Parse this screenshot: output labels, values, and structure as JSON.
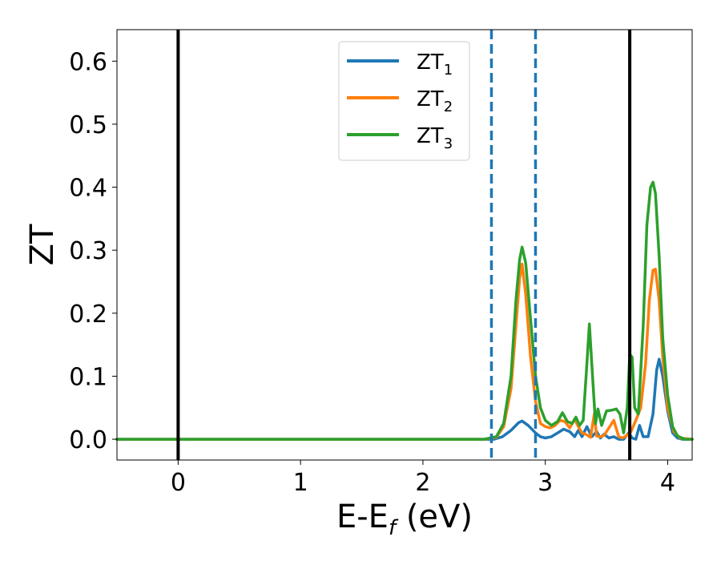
{
  "chart_data": {
    "type": "line",
    "xlabel": {
      "main": "E-E",
      "sub": "f",
      "unit": " (eV)"
    },
    "ylabel": "ZT",
    "xlim": [
      -0.5,
      4.2
    ],
    "ylim": [
      -0.033,
      0.65
    ],
    "xticks": [
      0,
      1,
      2,
      3,
      4
    ],
    "yticks": [
      0.0,
      0.1,
      0.2,
      0.3,
      0.4,
      0.5,
      0.6
    ],
    "xtick_labels": [
      "0",
      "1",
      "2",
      "3",
      "4"
    ],
    "ytick_labels": [
      "0.0",
      "0.1",
      "0.2",
      "0.3",
      "0.4",
      "0.5",
      "0.6"
    ],
    "grid": false,
    "legend_position": "top-center",
    "vlines": [
      {
        "x": 0.0,
        "style": "solid",
        "color": "#000000"
      },
      {
        "x": 2.56,
        "style": "dashed",
        "color": "#1f77b4"
      },
      {
        "x": 2.92,
        "style": "dashed",
        "color": "#1f77b4"
      },
      {
        "x": 3.69,
        "style": "solid",
        "color": "#000000"
      }
    ],
    "series": [
      {
        "name": "ZT",
        "sub": "1",
        "color": "#1f77b4",
        "x": [
          -0.5,
          2.5,
          2.58,
          2.65,
          2.72,
          2.78,
          2.81,
          2.86,
          2.92,
          2.96,
          3.0,
          3.05,
          3.1,
          3.15,
          3.2,
          3.24,
          3.27,
          3.3,
          3.34,
          3.38,
          3.42,
          3.45,
          3.48,
          3.52,
          3.56,
          3.6,
          3.64,
          3.68,
          3.71,
          3.74,
          3.77,
          3.8,
          3.84,
          3.88,
          3.91,
          3.93,
          3.96,
          4.0,
          4.04,
          4.08,
          4.12,
          4.2
        ],
        "y": [
          0.0,
          0.0,
          0.0,
          0.004,
          0.014,
          0.026,
          0.029,
          0.022,
          0.01,
          0.004,
          0.002,
          0.004,
          0.01,
          0.016,
          0.012,
          0.004,
          0.014,
          0.004,
          0.02,
          0.004,
          0.012,
          0.002,
          0.008,
          0.002,
          0.004,
          0.0,
          0.0,
          0.01,
          0.002,
          0.0,
          0.022,
          0.004,
          0.004,
          0.04,
          0.11,
          0.127,
          0.1,
          0.045,
          0.01,
          0.002,
          0.0,
          0.0
        ]
      },
      {
        "name": "ZT",
        "sub": "2",
        "color": "#ff7f0e",
        "x": [
          -0.5,
          2.5,
          2.6,
          2.66,
          2.72,
          2.76,
          2.79,
          2.81,
          2.84,
          2.88,
          2.92,
          2.96,
          3.0,
          3.04,
          3.08,
          3.12,
          3.16,
          3.2,
          3.24,
          3.27,
          3.3,
          3.33,
          3.37,
          3.4,
          3.42,
          3.45,
          3.48,
          3.52,
          3.56,
          3.6,
          3.63,
          3.66,
          3.7,
          3.74,
          3.78,
          3.82,
          3.85,
          3.88,
          3.9,
          3.93,
          3.96,
          4.0,
          4.05,
          4.1,
          4.2
        ],
        "y": [
          0.0,
          0.0,
          0.003,
          0.02,
          0.08,
          0.18,
          0.255,
          0.278,
          0.23,
          0.13,
          0.06,
          0.025,
          0.02,
          0.018,
          0.022,
          0.03,
          0.028,
          0.018,
          0.032,
          0.02,
          0.01,
          0.008,
          0.003,
          0.04,
          0.005,
          0.004,
          0.006,
          0.018,
          0.03,
          0.004,
          0.002,
          0.005,
          0.012,
          0.03,
          0.05,
          0.12,
          0.22,
          0.268,
          0.27,
          0.22,
          0.13,
          0.05,
          0.012,
          0.002,
          0.0
        ]
      },
      {
        "name": "ZT",
        "sub": "3",
        "color": "#2ca02c",
        "x": [
          -0.5,
          2.5,
          2.6,
          2.66,
          2.72,
          2.76,
          2.79,
          2.81,
          2.84,
          2.88,
          2.92,
          2.96,
          3.0,
          3.05,
          3.1,
          3.14,
          3.18,
          3.22,
          3.25,
          3.28,
          3.31,
          3.34,
          3.36,
          3.38,
          3.41,
          3.43,
          3.46,
          3.5,
          3.54,
          3.58,
          3.61,
          3.64,
          3.67,
          3.69,
          3.71,
          3.73,
          3.76,
          3.8,
          3.83,
          3.86,
          3.88,
          3.9,
          3.93,
          3.96,
          4.0,
          4.04,
          4.08,
          4.14,
          4.2
        ],
        "y": [
          0.0,
          0.0,
          0.004,
          0.025,
          0.1,
          0.22,
          0.285,
          0.305,
          0.28,
          0.19,
          0.1,
          0.05,
          0.03,
          0.022,
          0.028,
          0.042,
          0.028,
          0.025,
          0.035,
          0.022,
          0.03,
          0.12,
          0.183,
          0.12,
          0.025,
          0.048,
          0.022,
          0.045,
          0.046,
          0.048,
          0.04,
          0.01,
          0.05,
          0.135,
          0.13,
          0.05,
          0.04,
          0.18,
          0.34,
          0.4,
          0.408,
          0.39,
          0.29,
          0.16,
          0.07,
          0.02,
          0.005,
          0.0,
          0.0
        ]
      }
    ]
  }
}
